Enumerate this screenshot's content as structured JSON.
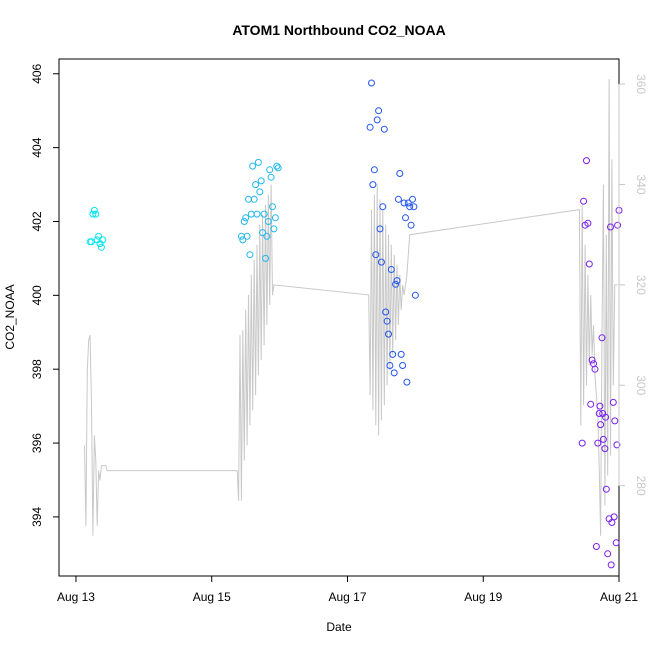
{
  "chart_data": {
    "type": "scatter",
    "title": "ATOM1 Northbound CO2_NOAA",
    "xlabel": "Date",
    "ylabel": "CO2_NOAA",
    "ylabel_right": "",
    "x_is_date": true,
    "xlim": [
      "2016-08-12T18:00",
      "2016-08-21T00:00"
    ],
    "ylim": [
      392.4,
      406.4
    ],
    "y2lim": [
      262,
      365
    ],
    "xticks": [
      {
        "label": "Aug 13",
        "value": "2016-08-13T00:00"
      },
      {
        "label": "Aug 15",
        "value": "2016-08-15T00:00"
      },
      {
        "label": "Aug 17",
        "value": "2016-08-17T00:00"
      },
      {
        "label": "Aug 19",
        "value": "2016-08-19T00:00"
      },
      {
        "label": "Aug 21",
        "value": "2016-08-21T00:00"
      }
    ],
    "yticks": [
      394,
      396,
      398,
      400,
      402,
      404,
      406
    ],
    "y2ticks": [
      280,
      300,
      320,
      340,
      360
    ],
    "grid": false,
    "legend": "none",
    "colors": {
      "cyan": "#00E5EE",
      "sky": "#22B8EE",
      "blue": "#2255EE",
      "purple": "#7A1FEE",
      "line": "#c8c8c8",
      "right_axis": "#c8c8c8"
    },
    "series": [
      {
        "color": "cyan",
        "x": [
          "2016-08-13T05:00",
          "2016-08-13T05:30",
          "2016-08-13T06:00",
          "2016-08-13T06:30",
          "2016-08-13T07:00",
          "2016-08-13T07:30",
          "2016-08-13T08:00",
          "2016-08-13T08:30",
          "2016-08-13T09:00",
          "2016-08-13T09:30"
        ],
        "y": [
          401.45,
          401.45,
          402.2,
          402.3,
          402.2,
          401.5,
          401.6,
          401.4,
          401.3,
          401.5
        ]
      },
      {
        "color": "sky",
        "x": [
          "2016-08-15T10:30",
          "2016-08-15T11:00",
          "2016-08-15T11:30",
          "2016-08-15T12:00",
          "2016-08-15T12:30",
          "2016-08-15T13:00",
          "2016-08-15T13:30",
          "2016-08-15T14:00",
          "2016-08-15T14:30",
          "2016-08-15T15:00",
          "2016-08-15T15:30",
          "2016-08-15T16:00",
          "2016-08-15T16:30",
          "2016-08-15T17:00",
          "2016-08-15T17:30",
          "2016-08-15T18:00",
          "2016-08-15T18:30",
          "2016-08-15T19:00",
          "2016-08-15T19:30",
          "2016-08-15T20:00",
          "2016-08-15T20:30",
          "2016-08-15T21:00",
          "2016-08-15T21:30",
          "2016-08-15T22:00",
          "2016-08-15T22:30",
          "2016-08-15T23:00",
          "2016-08-15T23:30"
        ],
        "y": [
          401.6,
          401.5,
          402.0,
          402.1,
          401.6,
          402.6,
          401.1,
          402.2,
          403.5,
          402.6,
          403.0,
          402.2,
          403.6,
          402.8,
          403.1,
          401.7,
          402.2,
          401.0,
          401.6,
          402.0,
          403.4,
          403.2,
          402.4,
          401.8,
          402.1,
          403.5,
          403.45
        ]
      },
      {
        "color": "blue",
        "x": [
          "2016-08-17T08:00",
          "2016-08-17T08:30",
          "2016-08-17T09:00",
          "2016-08-17T09:30",
          "2016-08-17T10:00",
          "2016-08-17T10:30",
          "2016-08-17T11:00",
          "2016-08-17T11:30",
          "2016-08-17T12:00",
          "2016-08-17T12:30",
          "2016-08-17T13:00",
          "2016-08-17T13:30",
          "2016-08-17T14:00",
          "2016-08-17T14:30",
          "2016-08-17T15:00",
          "2016-08-17T15:30",
          "2016-08-17T16:00",
          "2016-08-17T16:30",
          "2016-08-17T17:00",
          "2016-08-17T17:30",
          "2016-08-17T18:00",
          "2016-08-17T18:30",
          "2016-08-17T19:00",
          "2016-08-17T19:30",
          "2016-08-17T20:00",
          "2016-08-17T20:30",
          "2016-08-17T21:00",
          "2016-08-17T21:30",
          "2016-08-17T22:00",
          "2016-08-17T22:30",
          "2016-08-17T23:00",
          "2016-08-17T23:30",
          "2016-08-18T00:00"
        ],
        "y": [
          404.55,
          405.75,
          403.0,
          403.4,
          401.1,
          404.75,
          405.0,
          401.8,
          400.9,
          402.4,
          404.5,
          399.55,
          399.3,
          398.95,
          398.1,
          400.7,
          398.4,
          397.9,
          400.3,
          400.4,
          402.6,
          403.3,
          398.4,
          398.1,
          402.5,
          402.1,
          397.65,
          402.5,
          402.4,
          401.9,
          402.6,
          402.4,
          400.0
        ]
      },
      {
        "color": "purple",
        "x": [
          "2016-08-20T11:00",
          "2016-08-20T11:30",
          "2016-08-20T12:00",
          "2016-08-20T12:30",
          "2016-08-20T13:00",
          "2016-08-20T13:30",
          "2016-08-20T14:00",
          "2016-08-20T14:30",
          "2016-08-20T15:00",
          "2016-08-20T15:30",
          "2016-08-20T16:00",
          "2016-08-20T16:30",
          "2016-08-20T17:00",
          "2016-08-20T17:30",
          "2016-08-20T18:00",
          "2016-08-20T18:30",
          "2016-08-20T19:00",
          "2016-08-20T19:30",
          "2016-08-20T20:00",
          "2016-08-20T20:30",
          "2016-08-20T21:00",
          "2016-08-20T21:30",
          "2016-08-20T22:00",
          "2016-08-20T22:30",
          "2016-08-20T23:00",
          "2016-08-20T23:30",
          "2016-08-21T00:00",
          "2016-08-20T17:15",
          "2016-08-20T18:15",
          "2016-08-20T19:15",
          "2016-08-20T21:15",
          "2016-08-20T22:15",
          "2016-08-20T23:15"
        ],
        "y": [
          396.0,
          402.55,
          401.9,
          403.65,
          401.95,
          400.85,
          397.05,
          398.25,
          398.15,
          398.0,
          393.2,
          396.0,
          396.8,
          396.5,
          398.85,
          396.1,
          395.85,
          394.75,
          393.0,
          393.95,
          401.85,
          393.85,
          397.1,
          396.6,
          393.3,
          401.9,
          402.3,
          397.0,
          396.8,
          396.7,
          392.7,
          394.0,
          395.95
        ]
      }
    ],
    "line_series": {
      "axis": "right",
      "color": "line",
      "x": [
        "2016-08-13T03:00",
        "2016-08-13T03:30",
        "2016-08-13T04:00",
        "2016-08-13T04:30",
        "2016-08-13T05:00",
        "2016-08-13T05:30",
        "2016-08-13T06:00",
        "2016-08-13T06:30",
        "2016-08-13T07:00",
        "2016-08-13T07:30",
        "2016-08-13T08:00",
        "2016-08-13T08:30",
        "2016-08-13T09:00",
        "2016-08-13T09:30",
        "2016-08-13T10:00",
        "2016-08-13T10:30",
        "2016-08-13T11:00",
        "2016-08-15T09:00",
        "2016-08-15T09:30",
        "2016-08-15T10:00",
        "2016-08-15T10:30",
        "2016-08-15T11:00",
        "2016-08-15T11:30",
        "2016-08-15T12:00",
        "2016-08-15T12:30",
        "2016-08-15T13:00",
        "2016-08-15T13:30",
        "2016-08-15T14:00",
        "2016-08-15T14:30",
        "2016-08-15T15:00",
        "2016-08-15T15:30",
        "2016-08-15T16:00",
        "2016-08-15T16:30",
        "2016-08-15T17:00",
        "2016-08-15T17:30",
        "2016-08-15T18:00",
        "2016-08-15T18:30",
        "2016-08-15T19:00",
        "2016-08-15T19:30",
        "2016-08-15T20:00",
        "2016-08-15T20:30",
        "2016-08-15T21:00",
        "2016-08-15T21:30",
        "2016-08-15T22:00",
        "2016-08-17T07:30",
        "2016-08-17T08:00",
        "2016-08-17T08:30",
        "2016-08-17T09:00",
        "2016-08-17T09:30",
        "2016-08-17T10:00",
        "2016-08-17T10:30",
        "2016-08-17T11:00",
        "2016-08-17T11:30",
        "2016-08-17T12:00",
        "2016-08-17T12:30",
        "2016-08-17T13:00",
        "2016-08-17T13:30",
        "2016-08-17T14:00",
        "2016-08-17T14:30",
        "2016-08-17T15:00",
        "2016-08-17T15:30",
        "2016-08-17T16:00",
        "2016-08-17T16:30",
        "2016-08-17T17:00",
        "2016-08-17T17:30",
        "2016-08-17T18:00",
        "2016-08-17T18:30",
        "2016-08-17T19:00",
        "2016-08-17T19:30",
        "2016-08-17T20:00",
        "2016-08-17T20:30",
        "2016-08-17T21:00",
        "2016-08-17T21:30",
        "2016-08-17T22:00",
        "2016-08-20T10:00",
        "2016-08-20T10:30",
        "2016-08-20T11:00",
        "2016-08-20T11:30",
        "2016-08-20T12:00",
        "2016-08-20T12:30",
        "2016-08-20T13:00",
        "2016-08-20T13:30",
        "2016-08-20T14:00",
        "2016-08-20T14:30",
        "2016-08-20T15:00",
        "2016-08-20T15:30",
        "2016-08-20T16:00",
        "2016-08-20T16:30",
        "2016-08-20T17:00",
        "2016-08-20T17:30",
        "2016-08-20T18:00",
        "2016-08-20T18:30",
        "2016-08-20T19:00",
        "2016-08-20T19:30",
        "2016-08-20T20:00",
        "2016-08-20T20:30",
        "2016-08-20T21:00",
        "2016-08-20T21:30",
        "2016-08-20T22:00",
        "2016-08-20T22:30",
        "2016-08-20T23:00",
        "2016-08-20T23:30"
      ],
      "y": [
        288,
        272,
        303,
        309,
        310,
        296,
        270,
        290,
        285,
        272,
        283,
        281,
        284,
        284,
        284,
        284,
        283,
        283,
        277,
        310,
        277,
        311,
        285,
        315,
        288,
        318,
        292,
        322,
        295,
        325,
        298,
        328,
        302,
        332,
        305,
        334,
        308,
        336,
        312,
        338,
        316,
        340,
        318,
        320,
        318,
        298,
        335,
        295,
        338,
        292,
        340,
        290,
        337,
        293,
        335,
        296,
        332,
        300,
        330,
        303,
        328,
        306,
        326,
        309,
        324,
        312,
        322,
        315,
        320,
        318,
        320,
        322,
        326,
        330,
        335,
        292,
        336,
        296,
        328,
        300,
        322,
        304,
        318,
        306,
        312,
        302,
        298,
        294,
        284,
        270,
        310,
        340,
        276,
        330,
        282,
        361,
        286,
        345,
        300,
        320,
        320,
        320
      ]
    }
  }
}
